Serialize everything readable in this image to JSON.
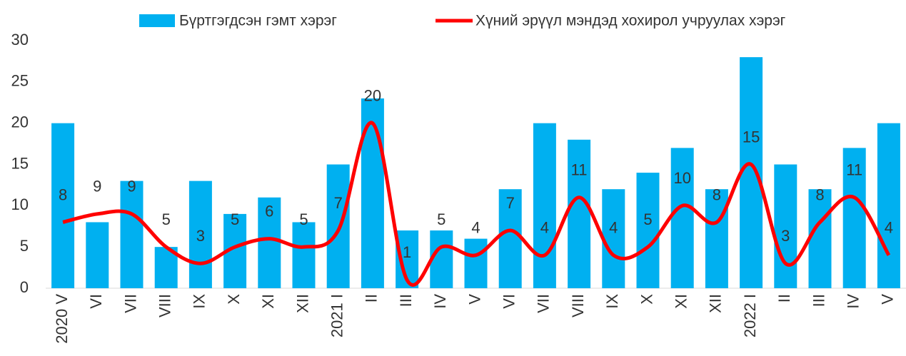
{
  "chart_data": {
    "type": "bar-line",
    "categories": [
      "2020 V",
      "VI",
      "VII",
      "VIII",
      "IX",
      "X",
      "XI",
      "XII",
      "2021 I",
      "II",
      "III",
      "IV",
      "V",
      "VI",
      "VII",
      "VIII",
      "IX",
      "X",
      "XI",
      "XII",
      "2022 I",
      "II",
      "III",
      "IV",
      "V"
    ],
    "series": [
      {
        "name": "Бүртгэгдсэн гэмт хэрэг",
        "type": "bar",
        "color": "#00b0f0",
        "values": [
          20,
          8,
          13,
          5,
          13,
          9,
          11,
          8,
          15,
          23,
          7,
          7,
          6,
          12,
          20,
          18,
          12,
          14,
          17,
          12,
          28,
          15,
          12,
          17,
          20
        ]
      },
      {
        "name": "Хүний эрүүл мэндэд хохирол учруулах хэрэг",
        "type": "line",
        "color": "#ff0000",
        "values": [
          8,
          9,
          9,
          5,
          3,
          5,
          6,
          5,
          7,
          20,
          1,
          5,
          4,
          7,
          4,
          11,
          4,
          5,
          10,
          8,
          15,
          3,
          8,
          11,
          4
        ]
      }
    ],
    "ylim": [
      0,
      30
    ],
    "yticks": [
      0,
      5,
      10,
      15,
      20,
      25,
      30
    ],
    "grid": false
  }
}
